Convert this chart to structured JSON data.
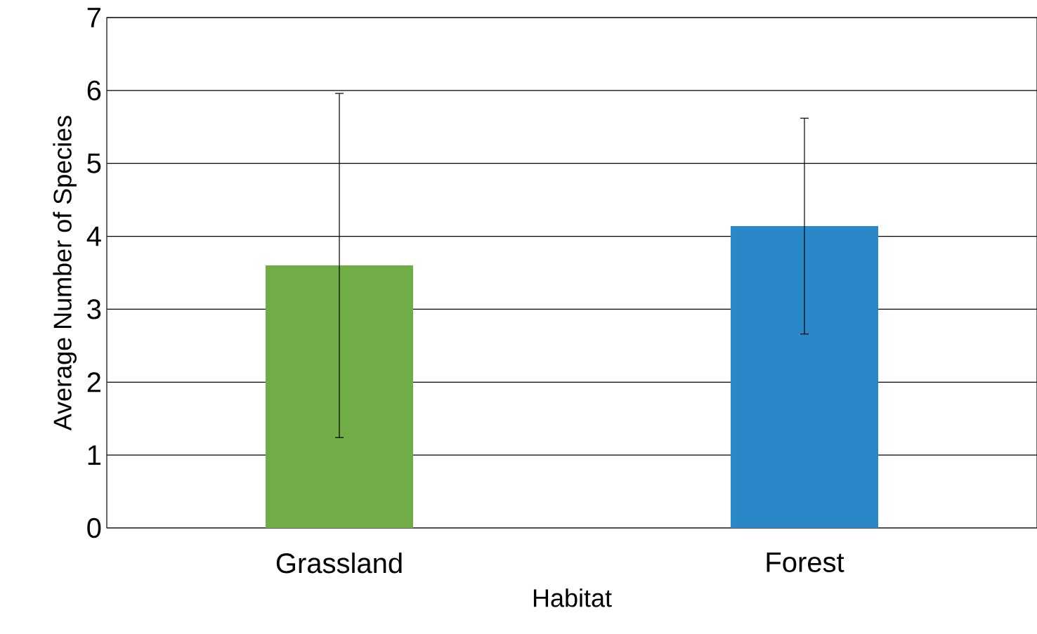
{
  "chart_data": {
    "type": "bar",
    "xlabel": "Habitat",
    "ylabel": "Average Number of Species",
    "categories": [
      "Grassland",
      "Forest"
    ],
    "values": [
      3.6,
      4.14
    ],
    "colors": [
      "#70ad47",
      "#2a88c9"
    ],
    "errors": [
      2.36,
      1.48
    ],
    "ylim": [
      0,
      7
    ],
    "yticks": [
      0,
      1,
      2,
      3,
      4,
      5,
      6,
      7
    ],
    "grid": "y"
  }
}
